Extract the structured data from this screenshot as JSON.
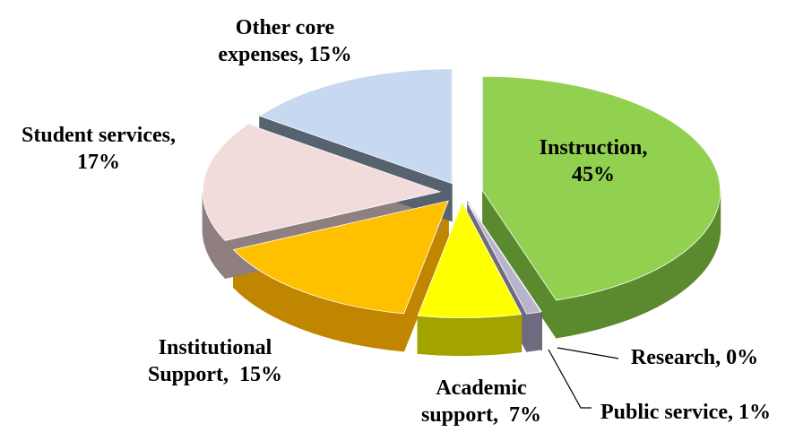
{
  "chart_data": {
    "type": "pie",
    "values": [
      45,
      0,
      1,
      7,
      15,
      17,
      15
    ],
    "value_labels": [
      "Instruction, 45%",
      "Research, 0%",
      "Public service, 1%",
      "Academic support,  7%",
      "Institutional Support,  15%",
      "Student services, 17%",
      "Other core expenses, 15%"
    ],
    "colors": [
      "#92d050",
      "#8c8c8c",
      "#b8b4cc",
      "#ffff00",
      "#ffc000",
      "#f2dcdb",
      "#c6d9f0"
    ],
    "side_colors": [
      "#5b8a2e",
      "#5a5a5a",
      "#6e6a80",
      "#a3a300",
      "#c08600",
      "#8f7f7f",
      "#56626e"
    ]
  }
}
